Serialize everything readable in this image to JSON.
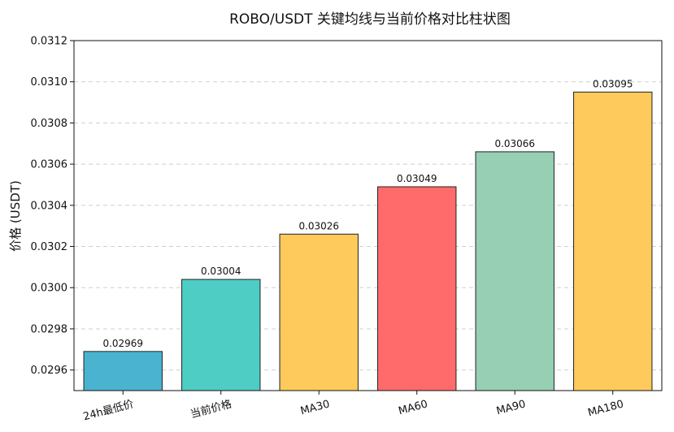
{
  "chart_data": {
    "type": "bar",
    "title": "ROBO/USDT 关键均线与当前价格对比柱状图",
    "xlabel": "",
    "ylabel": "价格 (USDT)",
    "categories": [
      "24h最低价",
      "当前价格",
      "MA30",
      "MA60",
      "MA90",
      "MA180"
    ],
    "values": [
      0.02969,
      0.03004,
      0.03026,
      0.03049,
      0.03066,
      0.03095
    ],
    "value_labels": [
      "0.02969",
      "0.03004",
      "0.03026",
      "0.03049",
      "0.03066",
      "0.03095"
    ],
    "colors": [
      "#4ab3cf",
      "#4ecdc4",
      "#fdca5b",
      "#ff6b6b",
      "#96cfb4",
      "#fdca5b"
    ],
    "ylim": [
      0.0295,
      0.0312
    ],
    "yticks": [
      "0.0296",
      "0.0298",
      "0.0300",
      "0.0302",
      "0.0304",
      "0.0306",
      "0.0308",
      "0.0310",
      "0.0312"
    ],
    "grid": "y-axis dashed",
    "legend": "none"
  }
}
